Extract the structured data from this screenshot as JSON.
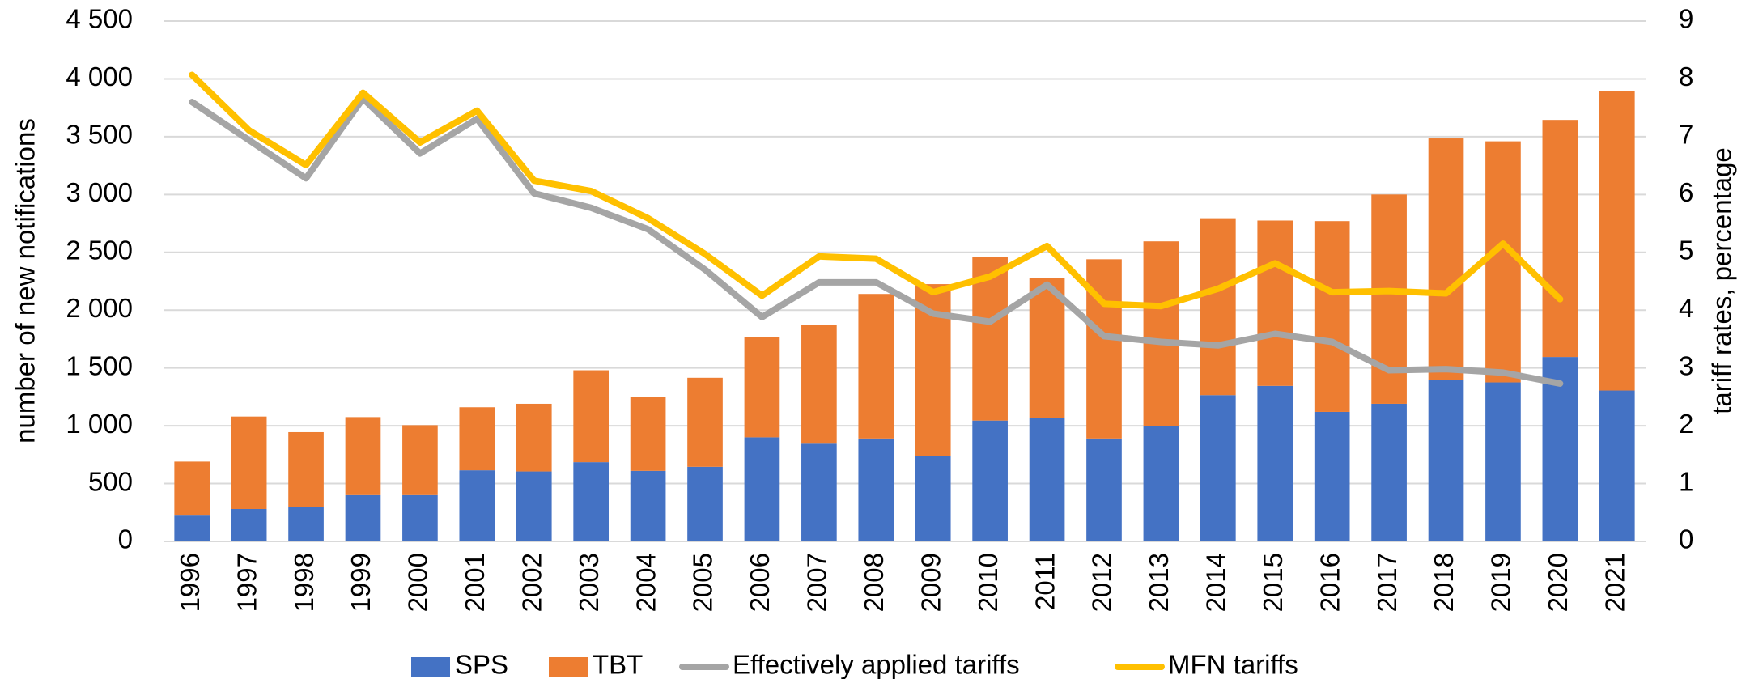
{
  "chart_data": {
    "type": "bar",
    "y_label": "number of new notifications",
    "y2_label": "tariff rates, percentage",
    "categories": [
      "1996",
      "1997",
      "1998",
      "1999",
      "2000",
      "2001",
      "2002",
      "2003",
      "2004",
      "2005",
      "2006",
      "2007",
      "2008",
      "2009",
      "2010",
      "2011",
      "2012",
      "2013",
      "2014",
      "2015",
      "2016",
      "2017",
      "2018",
      "2019",
      "2020",
      "2021"
    ],
    "series": [
      {
        "name": "SPS",
        "type": "bar",
        "color": "#4472c4",
        "values": [
          230,
          280,
          295,
          400,
          400,
          615,
          605,
          685,
          610,
          645,
          900,
          845,
          890,
          740,
          1045,
          1065,
          890,
          995,
          1265,
          1345,
          1120,
          1190,
          1395,
          1375,
          1595,
          1305
        ]
      },
      {
        "name": "TBT",
        "type": "bar",
        "color": "#ed7d31",
        "values": [
          460,
          800,
          650,
          675,
          605,
          545,
          585,
          795,
          640,
          770,
          870,
          1030,
          1250,
          1485,
          1415,
          1215,
          1550,
          1600,
          1530,
          1430,
          1650,
          1810,
          2090,
          2085,
          2050,
          2590
        ]
      },
      {
        "name": "Effectively applied tariffs",
        "type": "line",
        "axis": "y2",
        "color": "#a5a5a5",
        "values": [
          7.6,
          6.94,
          6.28,
          7.66,
          6.71,
          7.31,
          6.02,
          5.77,
          5.4,
          4.7,
          3.88,
          4.48,
          4.48,
          3.94,
          3.8,
          4.44,
          3.55,
          3.45,
          3.39,
          3.59,
          3.45,
          2.96,
          2.98,
          2.92,
          2.73,
          null
        ]
      },
      {
        "name": "MFN tariffs",
        "type": "line",
        "axis": "y2",
        "color": "#ffc000",
        "values": [
          8.07,
          7.11,
          6.51,
          7.76,
          6.9,
          7.45,
          6.24,
          6.06,
          5.59,
          4.97,
          4.25,
          4.93,
          4.89,
          4.31,
          4.58,
          5.11,
          4.11,
          4.07,
          4.37,
          4.81,
          4.31,
          4.33,
          4.29,
          5.15,
          4.19,
          null
        ]
      }
    ],
    "ylim": [
      0,
      4500
    ],
    "yticks": [
      0,
      500,
      {
        "value": 1000,
        "label": "1 000"
      },
      {
        "value": 1500,
        "label": "1 500"
      },
      {
        "value": 2000,
        "label": "2 000"
      },
      {
        "value": 2500,
        "label": "2 500"
      },
      {
        "value": 3000,
        "label": "3 000"
      },
      {
        "value": 3500,
        "label": "3 500"
      },
      {
        "value": 4000,
        "label": "4 000"
      },
      {
        "value": 4500,
        "label": "4 500"
      }
    ],
    "y2lim": [
      0,
      9
    ],
    "y2ticks": [
      0,
      1,
      2,
      3,
      4,
      5,
      6,
      7,
      8,
      9
    ],
    "grid": true,
    "legend": "bottom"
  }
}
